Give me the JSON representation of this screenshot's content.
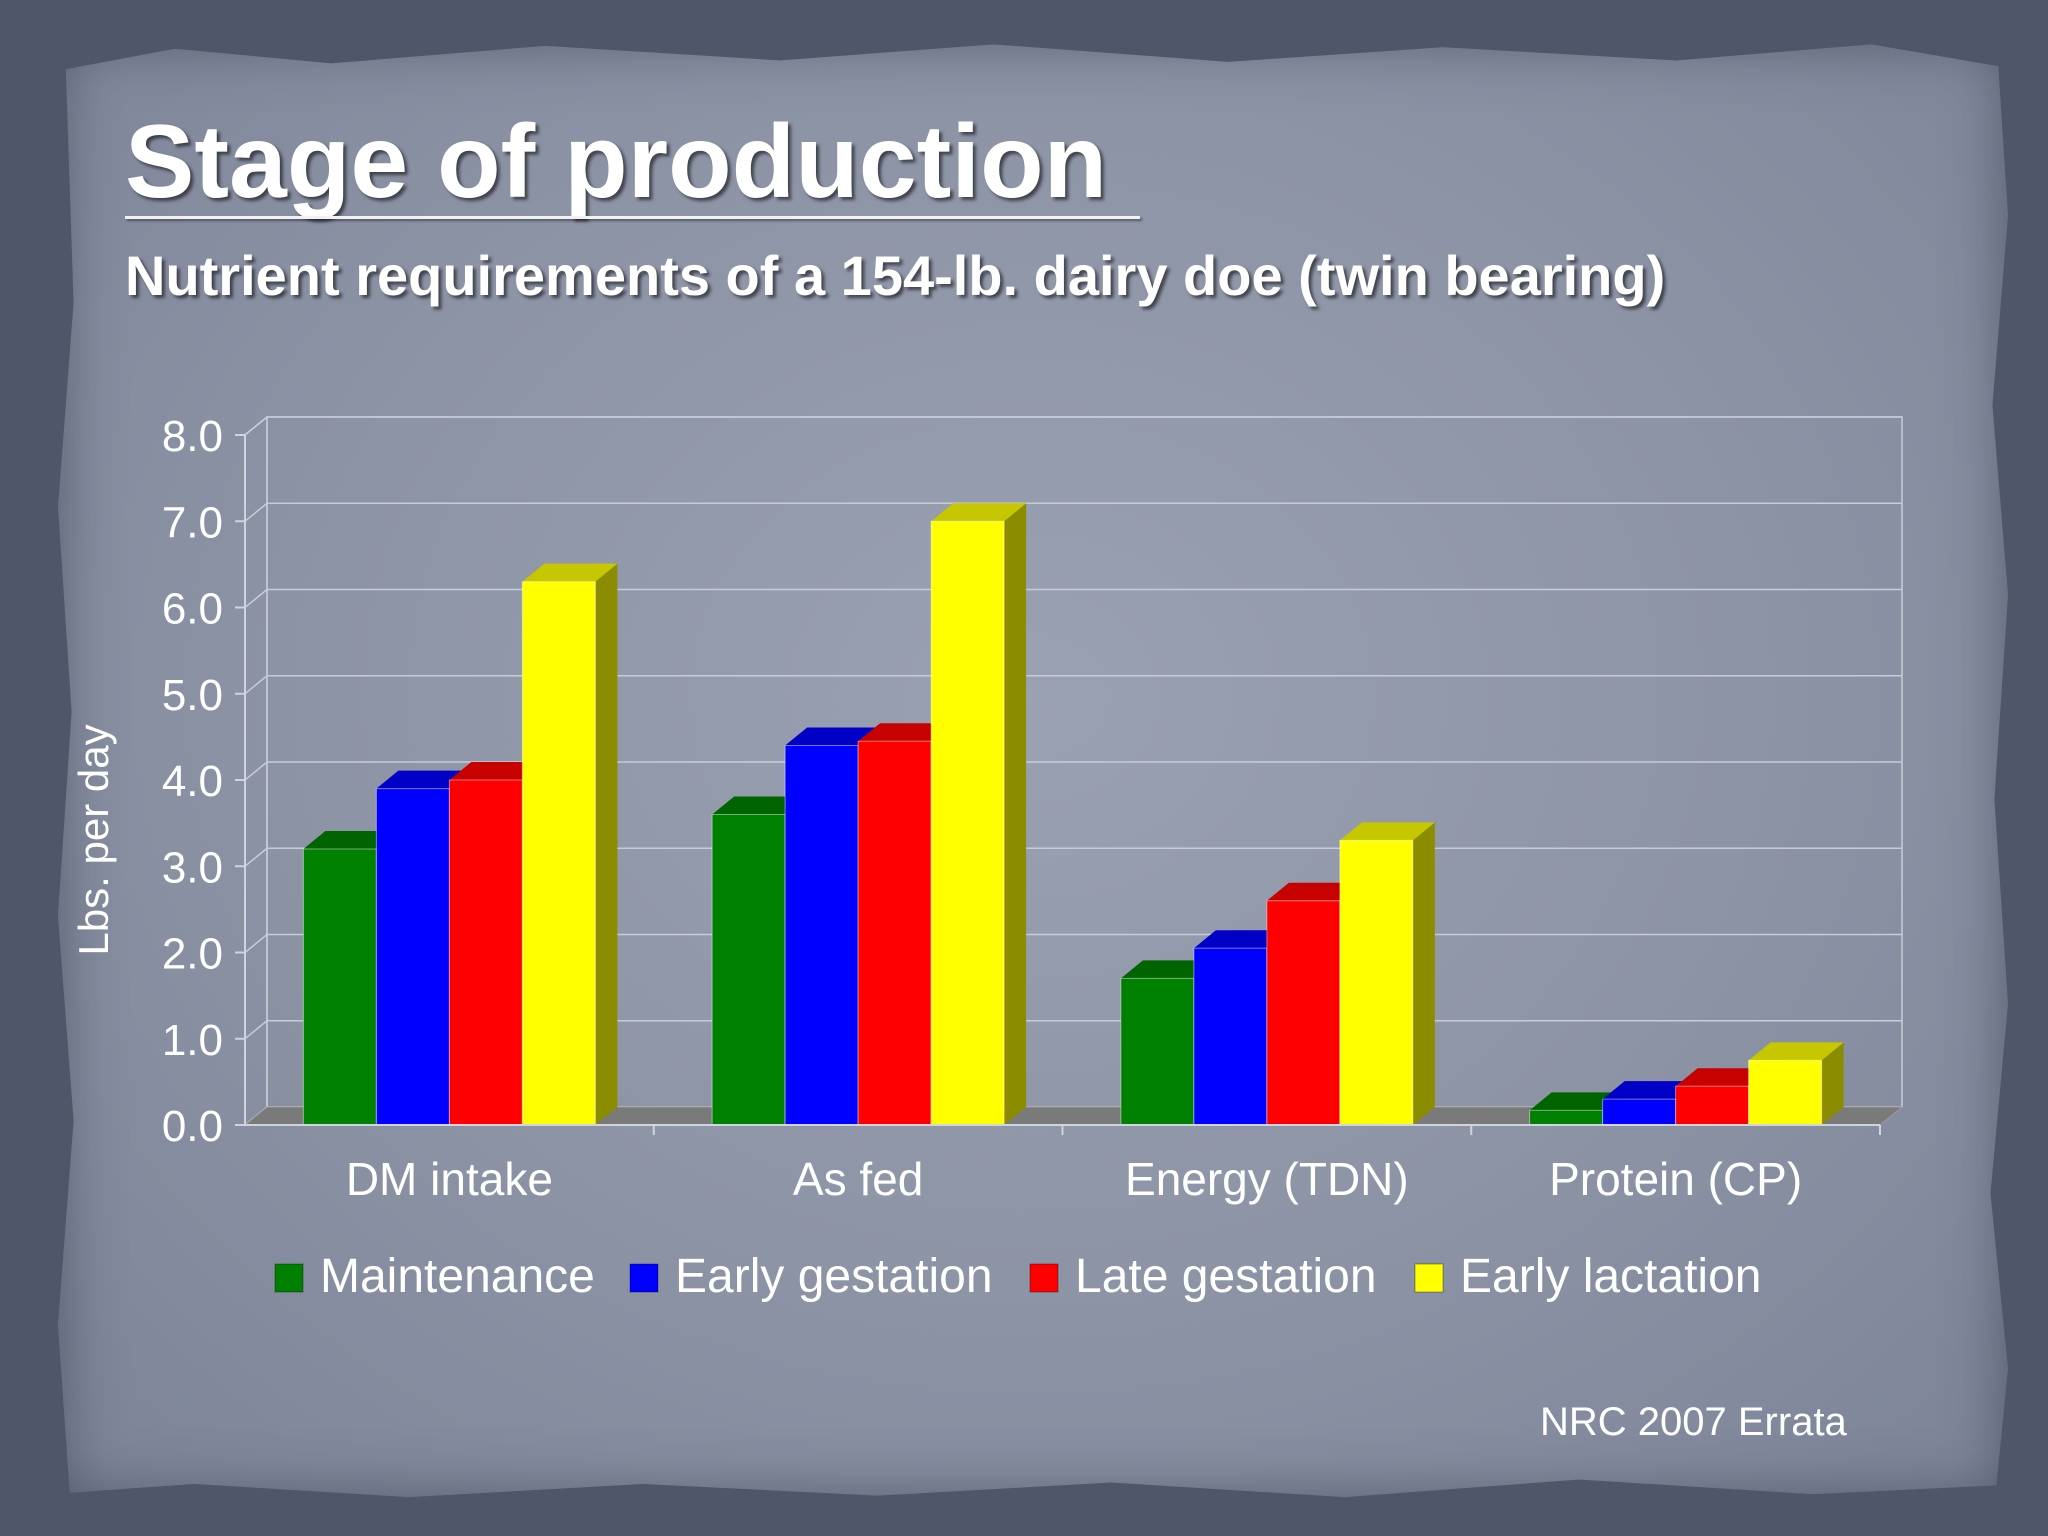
{
  "slide": {
    "title": "Stage of production",
    "subtitle": "Nutrient requirements of a 154-lb. dairy doe (twin bearing)",
    "source": "NRC 2007 Errata"
  },
  "chart_data": {
    "type": "bar",
    "title": "",
    "xlabel": "",
    "ylabel": "Lbs. per day",
    "ylim": [
      0,
      8
    ],
    "yticks": [
      "0.0",
      "1.0",
      "2.0",
      "3.0",
      "4.0",
      "5.0",
      "6.0",
      "7.0",
      "8.0"
    ],
    "categories": [
      "DM intake",
      "As fed",
      "Energy (TDN)",
      "Protein (CP)"
    ],
    "series": [
      {
        "name": "Maintenance",
        "color": "#008000",
        "values": [
          3.2,
          3.6,
          1.7,
          0.17
        ]
      },
      {
        "name": "Early gestation",
        "color": "#0000ff",
        "values": [
          3.9,
          4.4,
          2.05,
          0.3
        ]
      },
      {
        "name": "Late gestation",
        "color": "#ff0000",
        "values": [
          4.0,
          4.45,
          2.6,
          0.45
        ]
      },
      {
        "name": "Early lactation",
        "color": "#ffff00",
        "values": [
          6.3,
          7.0,
          3.3,
          0.75
        ]
      }
    ],
    "legend_position": "bottom",
    "grid": true
  }
}
